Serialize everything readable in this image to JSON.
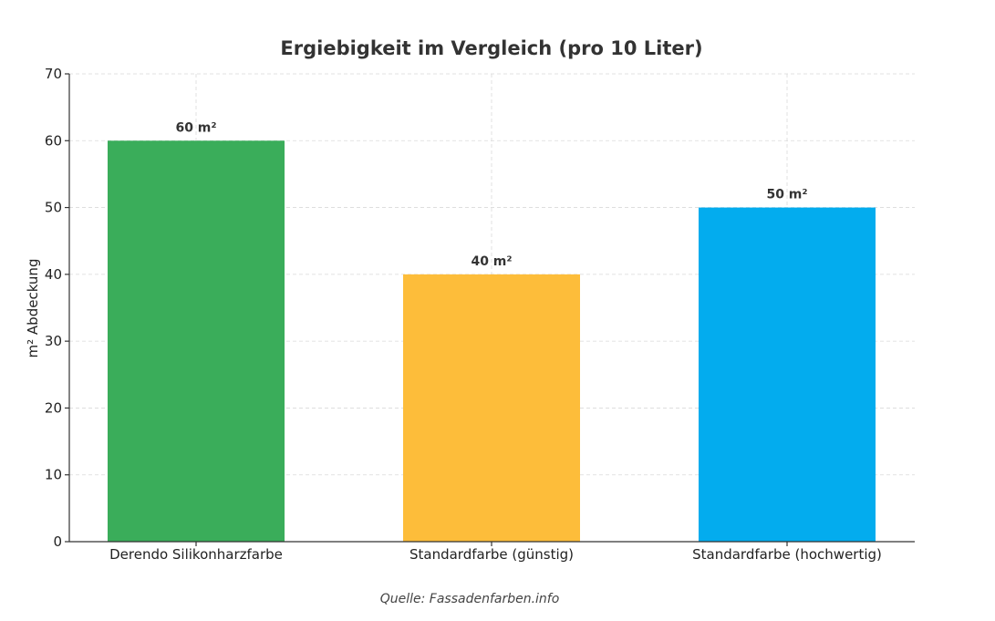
{
  "chart_data": {
    "type": "bar",
    "title": "Ergiebigkeit im Vergleich (pro 10 Liter)",
    "xlabel": "",
    "ylabel": "m² Abdeckung",
    "categories": [
      "Derendo Silikonharzfarbe",
      "Standardfarbe (günstig)",
      "Standardfarbe (hochwertig)"
    ],
    "values": [
      60,
      40,
      50
    ],
    "value_labels": [
      "60 m²",
      "40 m²",
      "50 m²"
    ],
    "colors": [
      "#3aad5a",
      "#fdbd3a",
      "#03acee"
    ],
    "ylim": [
      0,
      70
    ],
    "yticks": [
      0,
      10,
      20,
      30,
      40,
      50,
      60,
      70
    ],
    "grid": true
  },
  "source_note": "Quelle: Fassadenfarben.info"
}
